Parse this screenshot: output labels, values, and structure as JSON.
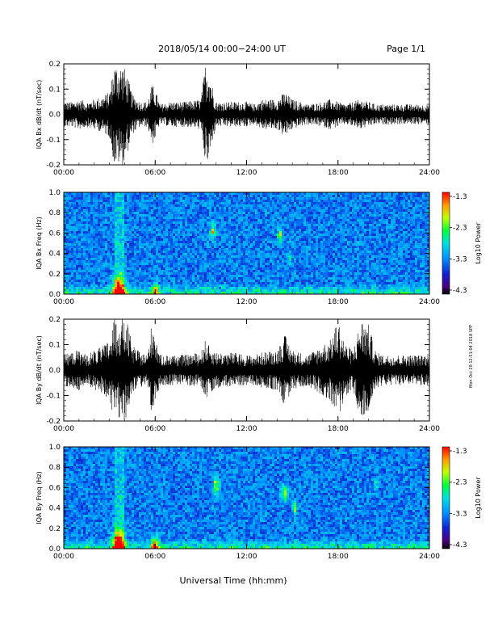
{
  "header": {
    "date_range": "2018/05/14  00:00−24:00 UT",
    "page": "Page 1/1"
  },
  "footer": {
    "xlabel": "Universal Time (hh:mm)"
  },
  "side_note": "Mon Oct 29 12:51:04 2018 SPP",
  "colorbar": {
    "label": "Log10 Power",
    "ticks": [
      "-1.3",
      "-2.3",
      "-3.3",
      "-4.3"
    ]
  },
  "colors": {
    "background": "#ffffff",
    "trace": "#000000",
    "spectrogram_low": "#1830c8",
    "spectrogram_high": "#ff0000"
  },
  "chart_data": [
    {
      "type": "line",
      "name": "bx-waveform",
      "ylabel": "IQA Bx dB/dt (nT/sec)",
      "xlabel": "",
      "xlim": [
        0,
        24
      ],
      "ylim": [
        -0.2,
        0.2
      ],
      "x_ticks": [
        "00:00",
        "06:00",
        "12:00",
        "18:00",
        "24:00"
      ],
      "y_ticks": [
        "-0.2",
        "-0.1",
        "0.0",
        "0.1",
        "0.2"
      ],
      "envelope": {
        "x": [
          0,
          0.5,
          1,
          1.5,
          2,
          2.5,
          3,
          3.3,
          3.6,
          3.9,
          4.2,
          4.5,
          5,
          5.5,
          5.8,
          6.0,
          6.3,
          7,
          8,
          9,
          9.3,
          9.5,
          9.8,
          10,
          11,
          12,
          12.5,
          13,
          14,
          14.5,
          15,
          15.5,
          16,
          17,
          17.5,
          18,
          18.5,
          19,
          19.5,
          20,
          20.5,
          21,
          22,
          23,
          24
        ],
        "amplitude": [
          0.05,
          0.05,
          0.06,
          0.05,
          0.06,
          0.07,
          0.09,
          0.2,
          0.2,
          0.2,
          0.15,
          0.08,
          0.05,
          0.05,
          0.12,
          0.1,
          0.04,
          0.05,
          0.05,
          0.06,
          0.2,
          0.2,
          0.1,
          0.05,
          0.05,
          0.05,
          0.04,
          0.06,
          0.06,
          0.09,
          0.06,
          0.05,
          0.04,
          0.05,
          0.06,
          0.05,
          0.04,
          0.05,
          0.06,
          0.05,
          0.04,
          0.04,
          0.04,
          0.04,
          0.04
        ]
      }
    },
    {
      "type": "heatmap",
      "name": "bx-spectrogram",
      "ylabel": "IQA Bx Freq (Hz)",
      "xlim": [
        0,
        24
      ],
      "ylim": [
        0,
        1.0
      ],
      "x_ticks": [
        "00:00",
        "06:00",
        "12:00",
        "18:00",
        "24:00"
      ],
      "y_ticks": [
        "0.0",
        "0.2",
        "0.4",
        "0.6",
        "0.8",
        "1.0"
      ],
      "clim": [
        -4.3,
        -1.3
      ]
    },
    {
      "type": "line",
      "name": "by-waveform",
      "ylabel": "IQA By dB/dt (nT/sec)",
      "xlabel": "",
      "xlim": [
        0,
        24
      ],
      "ylim": [
        -0.2,
        0.2
      ],
      "x_ticks": [
        "00:00",
        "06:00",
        "12:00",
        "18:00",
        "24:00"
      ],
      "y_ticks": [
        "-0.2",
        "-0.1",
        "0.0",
        "0.1",
        "0.2"
      ],
      "envelope": {
        "x": [
          0,
          0.5,
          1,
          1.5,
          2,
          2.5,
          3,
          3.3,
          3.6,
          3.9,
          4.2,
          4.5,
          5,
          5.5,
          5.8,
          6.0,
          6.3,
          7,
          8,
          9,
          9.3,
          9.5,
          9.8,
          10,
          11,
          12,
          12.5,
          13,
          14,
          14.5,
          15,
          15.5,
          16,
          17,
          17.5,
          18,
          18.5,
          19,
          19.5,
          20,
          20.5,
          21,
          22,
          23,
          24
        ],
        "amplitude": [
          0.06,
          0.07,
          0.08,
          0.06,
          0.08,
          0.09,
          0.12,
          0.2,
          0.2,
          0.2,
          0.18,
          0.1,
          0.07,
          0.06,
          0.2,
          0.15,
          0.06,
          0.06,
          0.06,
          0.07,
          0.12,
          0.1,
          0.08,
          0.07,
          0.07,
          0.06,
          0.06,
          0.07,
          0.08,
          0.14,
          0.08,
          0.07,
          0.06,
          0.1,
          0.12,
          0.2,
          0.1,
          0.08,
          0.2,
          0.18,
          0.07,
          0.06,
          0.06,
          0.06,
          0.06
        ]
      }
    },
    {
      "type": "heatmap",
      "name": "by-spectrogram",
      "ylabel": "IQA By Freq (Hz)",
      "xlim": [
        0,
        24
      ],
      "ylim": [
        0,
        1.0
      ],
      "x_ticks": [
        "00:00",
        "06:00",
        "12:00",
        "18:00",
        "24:00"
      ],
      "y_ticks": [
        "0.0",
        "0.2",
        "0.4",
        "0.6",
        "0.8",
        "1.0"
      ],
      "clim": [
        -4.3,
        -1.3
      ]
    }
  ]
}
